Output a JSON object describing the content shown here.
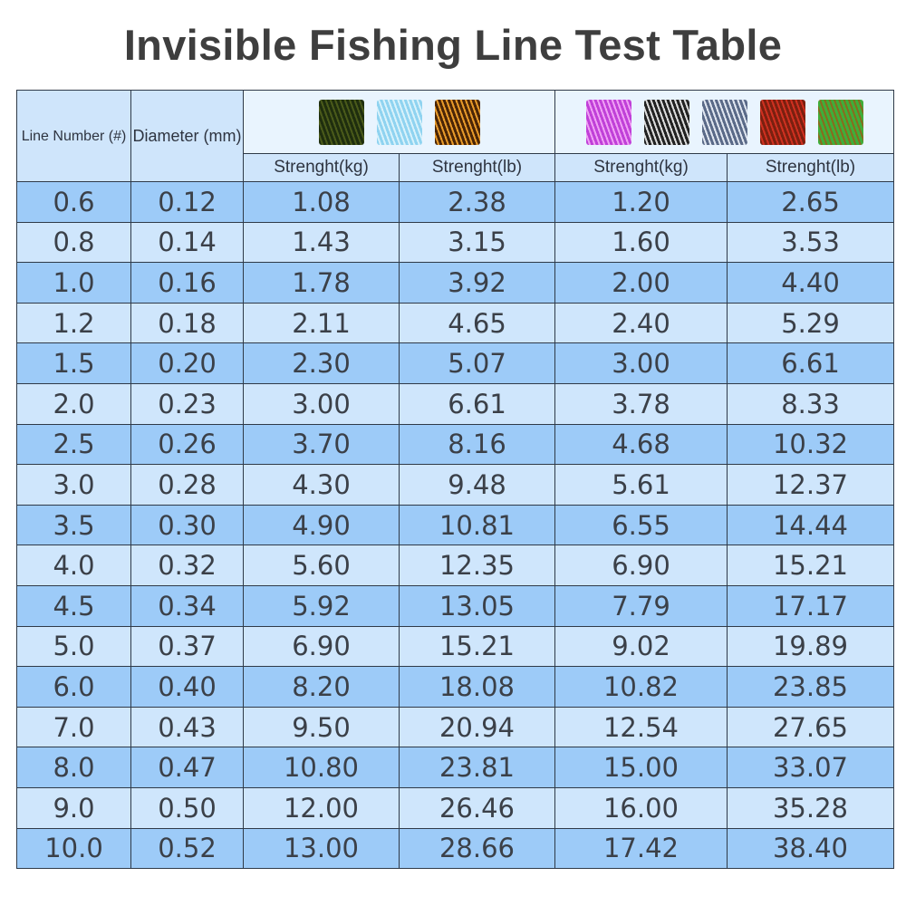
{
  "title": "Invisible Fishing Line Test Table",
  "colors": {
    "row_dark": "#9dcbf8",
    "row_light": "#cfe6fc",
    "header": "#cfe5fb",
    "border": "#2f3a48"
  },
  "swatch_groups": [
    [
      {
        "name": "dark-green-camo-swatch",
        "colors": [
          "#1f2e0e",
          "#4a5a1a"
        ]
      },
      {
        "name": "light-blue-swatch",
        "colors": [
          "#8fd3f0",
          "#d8f2fb"
        ]
      },
      {
        "name": "brown-orange-swatch",
        "colors": [
          "#4a2506",
          "#e89a2a"
        ]
      }
    ],
    [
      {
        "name": "purple-pink-swatch",
        "colors": [
          "#c040d8",
          "#f0a0f5"
        ]
      },
      {
        "name": "black-white-swatch",
        "colors": [
          "#222222",
          "#dddddd"
        ]
      },
      {
        "name": "gray-blue-swatch",
        "colors": [
          "#5a6a88",
          "#e0e6f0"
        ]
      },
      {
        "name": "red-brown-green-swatch",
        "colors": [
          "#7a2010",
          "#d03020"
        ]
      },
      {
        "name": "green-brown-camo-swatch",
        "colors": [
          "#3fae3a",
          "#8a6a1e"
        ]
      }
    ]
  ],
  "chart_data": {
    "type": "table",
    "title": "Invisible Fishing Line Test Table",
    "header": {
      "line_number": "Line Number (#)",
      "diameter": "Diameter (mm)",
      "strength_kg_1": "Strenght(kg)",
      "strength_lb_1": "Strenght(lb)",
      "strength_kg_2": "Strenght(kg)",
      "strength_lb_2": "Strenght(lb)"
    },
    "rows": [
      [
        "0.6",
        "0.12",
        "1.08",
        "2.38",
        "1.20",
        "2.65"
      ],
      [
        "0.8",
        "0.14",
        "1.43",
        "3.15",
        "1.60",
        "3.53"
      ],
      [
        "1.0",
        "0.16",
        "1.78",
        "3.92",
        "2.00",
        "4.40"
      ],
      [
        "1.2",
        "0.18",
        "2.11",
        "4.65",
        "2.40",
        "5.29"
      ],
      [
        "1.5",
        "0.20",
        "2.30",
        "5.07",
        "3.00",
        "6.61"
      ],
      [
        "2.0",
        "0.23",
        "3.00",
        "6.61",
        "3.78",
        "8.33"
      ],
      [
        "2.5",
        "0.26",
        "3.70",
        "8.16",
        "4.68",
        "10.32"
      ],
      [
        "3.0",
        "0.28",
        "4.30",
        "9.48",
        "5.61",
        "12.37"
      ],
      [
        "3.5",
        "0.30",
        "4.90",
        "10.81",
        "6.55",
        "14.44"
      ],
      [
        "4.0",
        "0.32",
        "5.60",
        "12.35",
        "6.90",
        "15.21"
      ],
      [
        "4.5",
        "0.34",
        "5.92",
        "13.05",
        "7.79",
        "17.17"
      ],
      [
        "5.0",
        "0.37",
        "6.90",
        "15.21",
        "9.02",
        "19.89"
      ],
      [
        "6.0",
        "0.40",
        "8.20",
        "18.08",
        "10.82",
        "23.85"
      ],
      [
        "7.0",
        "0.43",
        "9.50",
        "20.94",
        "12.54",
        "27.65"
      ],
      [
        "8.0",
        "0.47",
        "10.80",
        "23.81",
        "15.00",
        "33.07"
      ],
      [
        "9.0",
        "0.50",
        "12.00",
        "26.46",
        "16.00",
        "35.28"
      ],
      [
        "10.0",
        "0.52",
        "13.00",
        "28.66",
        "17.42",
        "38.40"
      ]
    ]
  }
}
